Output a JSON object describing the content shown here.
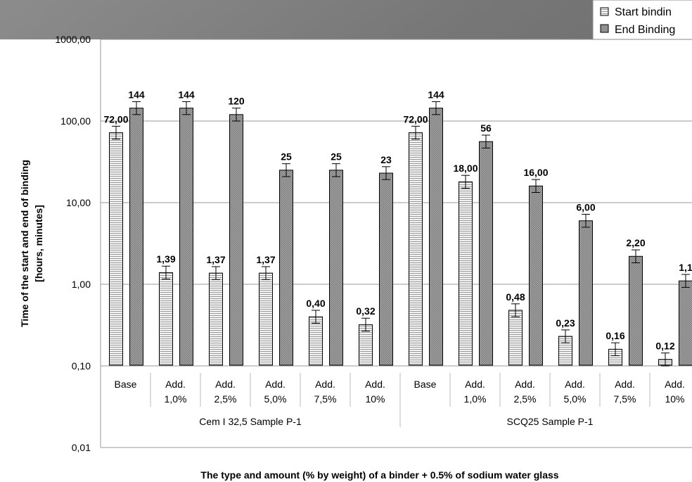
{
  "chart_data": {
    "type": "bar",
    "yscale": "log",
    "ylim": [
      0.01,
      1000
    ],
    "yticks": [
      "0,01",
      "0,10",
      "1,00",
      "10,00",
      "100,00",
      "1000,00"
    ],
    "ylabel_lines": [
      "Time of the start and end of binding",
      "[hours, minutes]"
    ],
    "xlabel": "The type and amount (% by weight) of a binder + 0.5% of sodium water glass",
    "grid": "horizontal",
    "legend_position": "top-right",
    "groups": [
      {
        "name": "Cem I 32,5 Sample P-1",
        "categories": [
          [
            "Base"
          ],
          [
            "Add.",
            "1,0%"
          ],
          [
            "Add.",
            "2,5%"
          ],
          [
            "Add.",
            "5,0%"
          ],
          [
            "Add.",
            "7,5%"
          ],
          [
            "Add.",
            "10%"
          ]
        ]
      },
      {
        "name": "SCQ25 Sample P-1",
        "categories": [
          [
            "Base"
          ],
          [
            "Add.",
            "1,0%"
          ],
          [
            "Add.",
            "2,5%"
          ],
          [
            "Add.",
            "5,0%"
          ],
          [
            "Add.",
            "7,5%"
          ],
          [
            "Add.",
            "10%"
          ]
        ]
      }
    ],
    "series": [
      {
        "name": "Start bindin",
        "pattern": "horizontal-lines",
        "values": [
          72,
          1.39,
          1.37,
          1.37,
          0.4,
          0.32,
          72,
          18,
          0.48,
          0.23,
          0.16,
          0.12
        ],
        "labels": [
          "72,00",
          "1,39",
          "1,37",
          "1,37",
          "0,40",
          "0,32",
          "72,00",
          "18,00",
          "0,48",
          "0,23",
          "0,16",
          "0,12"
        ]
      },
      {
        "name": "End Binding",
        "pattern": "crosshatch",
        "values": [
          144,
          144,
          120,
          25,
          25,
          23,
          144,
          56,
          16,
          6,
          2.2,
          1.1
        ],
        "labels": [
          "144",
          "144",
          "120",
          "25",
          "25",
          "23",
          "144",
          "56",
          "16,00",
          "6,00",
          "2,20",
          "1,1"
        ]
      }
    ]
  }
}
